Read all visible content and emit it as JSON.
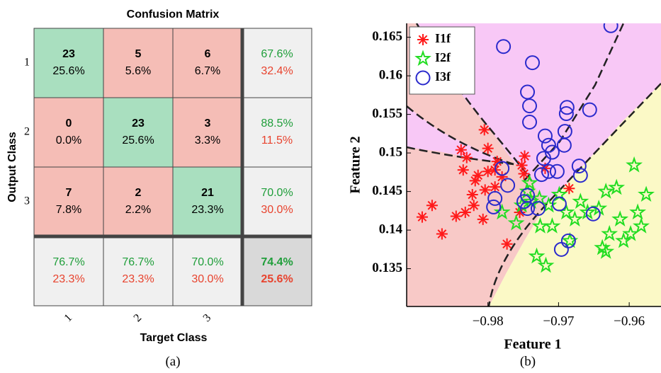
{
  "chart_data": [
    {
      "type": "confusion_matrix",
      "title": "Confusion Matrix",
      "xlabel": "Target Class",
      "ylabel": "Output Class",
      "caption": "(a)",
      "categories": [
        "1",
        "2",
        "3"
      ],
      "counts": [
        [
          23,
          5,
          6
        ],
        [
          0,
          23,
          3
        ],
        [
          7,
          2,
          21
        ]
      ],
      "percents": {
        "values": [
          [
            25.6,
            5.6,
            6.7
          ],
          [
            0,
            25.6,
            3.3
          ],
          [
            7.8,
            2.2,
            23.3
          ]
        ],
        "value_labels": [
          [
            "25.6%",
            "5.6%",
            "6.7%"
          ],
          [
            "0.0%",
            "25.6%",
            "3.3%"
          ],
          [
            "7.8%",
            "2.2%",
            "23.3%"
          ]
        ]
      },
      "row_correct": {
        "values": [
          67.6,
          88.5,
          70
        ],
        "value_labels": [
          "67.6%",
          "88.5%",
          "70.0%"
        ]
      },
      "row_error": {
        "values": [
          32.4,
          11.5,
          30
        ],
        "value_labels": [
          "32.4%",
          "11.5%",
          "30.0%"
        ]
      },
      "col_correct": {
        "values": [
          76.7,
          76.7,
          70
        ],
        "value_labels": [
          "76.7%",
          "76.7%",
          "70.0%"
        ]
      },
      "col_error": {
        "values": [
          23.3,
          23.3,
          30
        ],
        "value_labels": [
          "23.3%",
          "23.3%",
          "30.0%"
        ]
      },
      "overall_correct": {
        "value": 74.4,
        "label": "74.4%"
      },
      "overall_error": {
        "value": 25.6,
        "label": "25.6%"
      },
      "colors": {
        "correct": "#a9dfbf",
        "incorrect": "#f5bdb6",
        "summary": "#f0f0f0",
        "overall": "#d9d9d9",
        "correct_text": "#1f9e3a",
        "error_text": "#e8432e"
      }
    },
    {
      "type": "scatter",
      "xlabel": "Feature 1",
      "ylabel": "Feature 2",
      "caption": "(b)",
      "xlim": [
        -0.9915,
        -0.9555
      ],
      "ylim": [
        0.1301,
        0.1668
      ],
      "xticks": [
        {
          "value": -0.98,
          "label": "−0.98"
        },
        {
          "value": -0.97,
          "label": "−0.97"
        },
        {
          "value": -0.96,
          "label": "−0.96"
        }
      ],
      "yticks": [
        0.135,
        0.14,
        0.145,
        0.15,
        0.155,
        0.16,
        0.165
      ],
      "legend": "upper left",
      "series": [
        {
          "name": "I1f",
          "color": "#ff1a1a",
          "marker": "asterisk",
          "x": [
            -0.9893,
            -0.9865,
            -0.9879,
            -0.983,
            -0.9838,
            -0.9805,
            -0.98,
            -0.9814,
            -0.979,
            -0.982,
            -0.9807,
            -0.9822,
            -0.9832,
            -0.9845,
            -0.9818,
            -0.98,
            -0.979,
            -0.9773,
            -0.9755,
            -0.9748,
            -0.9752,
            -0.978,
            -0.9787,
            -0.9804,
            -0.9835,
            -0.9749,
            -0.9685,
            -0.9719
          ],
          "y": [
            0.1417,
            0.1395,
            0.1432,
            0.1494,
            0.1504,
            0.153,
            0.1506,
            0.1471,
            0.1456,
            0.1432,
            0.1414,
            0.1446,
            0.1423,
            0.1418,
            0.1464,
            0.1476,
            0.1478,
            0.1382,
            0.1423,
            0.1496,
            0.1484,
            0.1469,
            0.1489,
            0.1452,
            0.1478,
            0.1473,
            0.1454,
            0.148
          ]
        },
        {
          "name": "I2f",
          "color": "#22dd22",
          "marker": "star",
          "x": [
            -0.978,
            -0.976,
            -0.9741,
            -0.9744,
            -0.9739,
            -0.9752,
            -0.9727,
            -0.9714,
            -0.9699,
            -0.9689,
            -0.9677,
            -0.9669,
            -0.9659,
            -0.9643,
            -0.9633,
            -0.9618,
            -0.9613,
            -0.9608,
            -0.9598,
            -0.9588,
            -0.9583,
            -0.9576,
            -0.9593,
            -0.9628,
            -0.9638,
            -0.9633,
            -0.9684,
            -0.9718,
            -0.9731,
            -0.9709,
            -0.9726
          ],
          "y": [
            0.1423,
            0.1409,
            0.1461,
            0.145,
            0.1437,
            0.1432,
            0.1441,
            0.1432,
            0.1446,
            0.1423,
            0.1414,
            0.1437,
            0.1423,
            0.1428,
            0.145,
            0.1455,
            0.1414,
            0.1386,
            0.1395,
            0.1423,
            0.1405,
            0.1446,
            0.1484,
            0.1395,
            0.1377,
            0.1372,
            0.1386,
            0.1354,
            0.1366,
            0.1405,
            0.1405
          ]
        },
        {
          "name": "I3f",
          "color": "#2a2acc",
          "marker": "circle",
          "x": [
            -0.9626,
            -0.9778,
            -0.9737,
            -0.9744,
            -0.9741,
            -0.9741,
            -0.9719,
            -0.9714,
            -0.9691,
            -0.9689,
            -0.9688,
            -0.9656,
            -0.9692,
            -0.9709,
            -0.9721,
            -0.9714,
            -0.9702,
            -0.9724,
            -0.9671,
            -0.9669,
            -0.978,
            -0.979,
            -0.9792,
            -0.9772,
            -0.9749,
            -0.9744,
            -0.9744,
            -0.9729,
            -0.9699,
            -0.9651,
            -0.9686,
            -0.9696
          ],
          "y": [
            0.1665,
            0.1638,
            0.1617,
            0.1579,
            0.1561,
            0.154,
            0.1522,
            0.151,
            0.1528,
            0.1551,
            0.1559,
            0.1556,
            0.151,
            0.1501,
            0.1493,
            0.1476,
            0.1476,
            0.1472,
            0.1483,
            0.1471,
            0.148,
            0.1441,
            0.143,
            0.1458,
            0.1437,
            0.1445,
            0.1428,
            0.1428,
            0.1434,
            0.1421,
            0.1386,
            0.1375
          ]
        }
      ]
    }
  ]
}
